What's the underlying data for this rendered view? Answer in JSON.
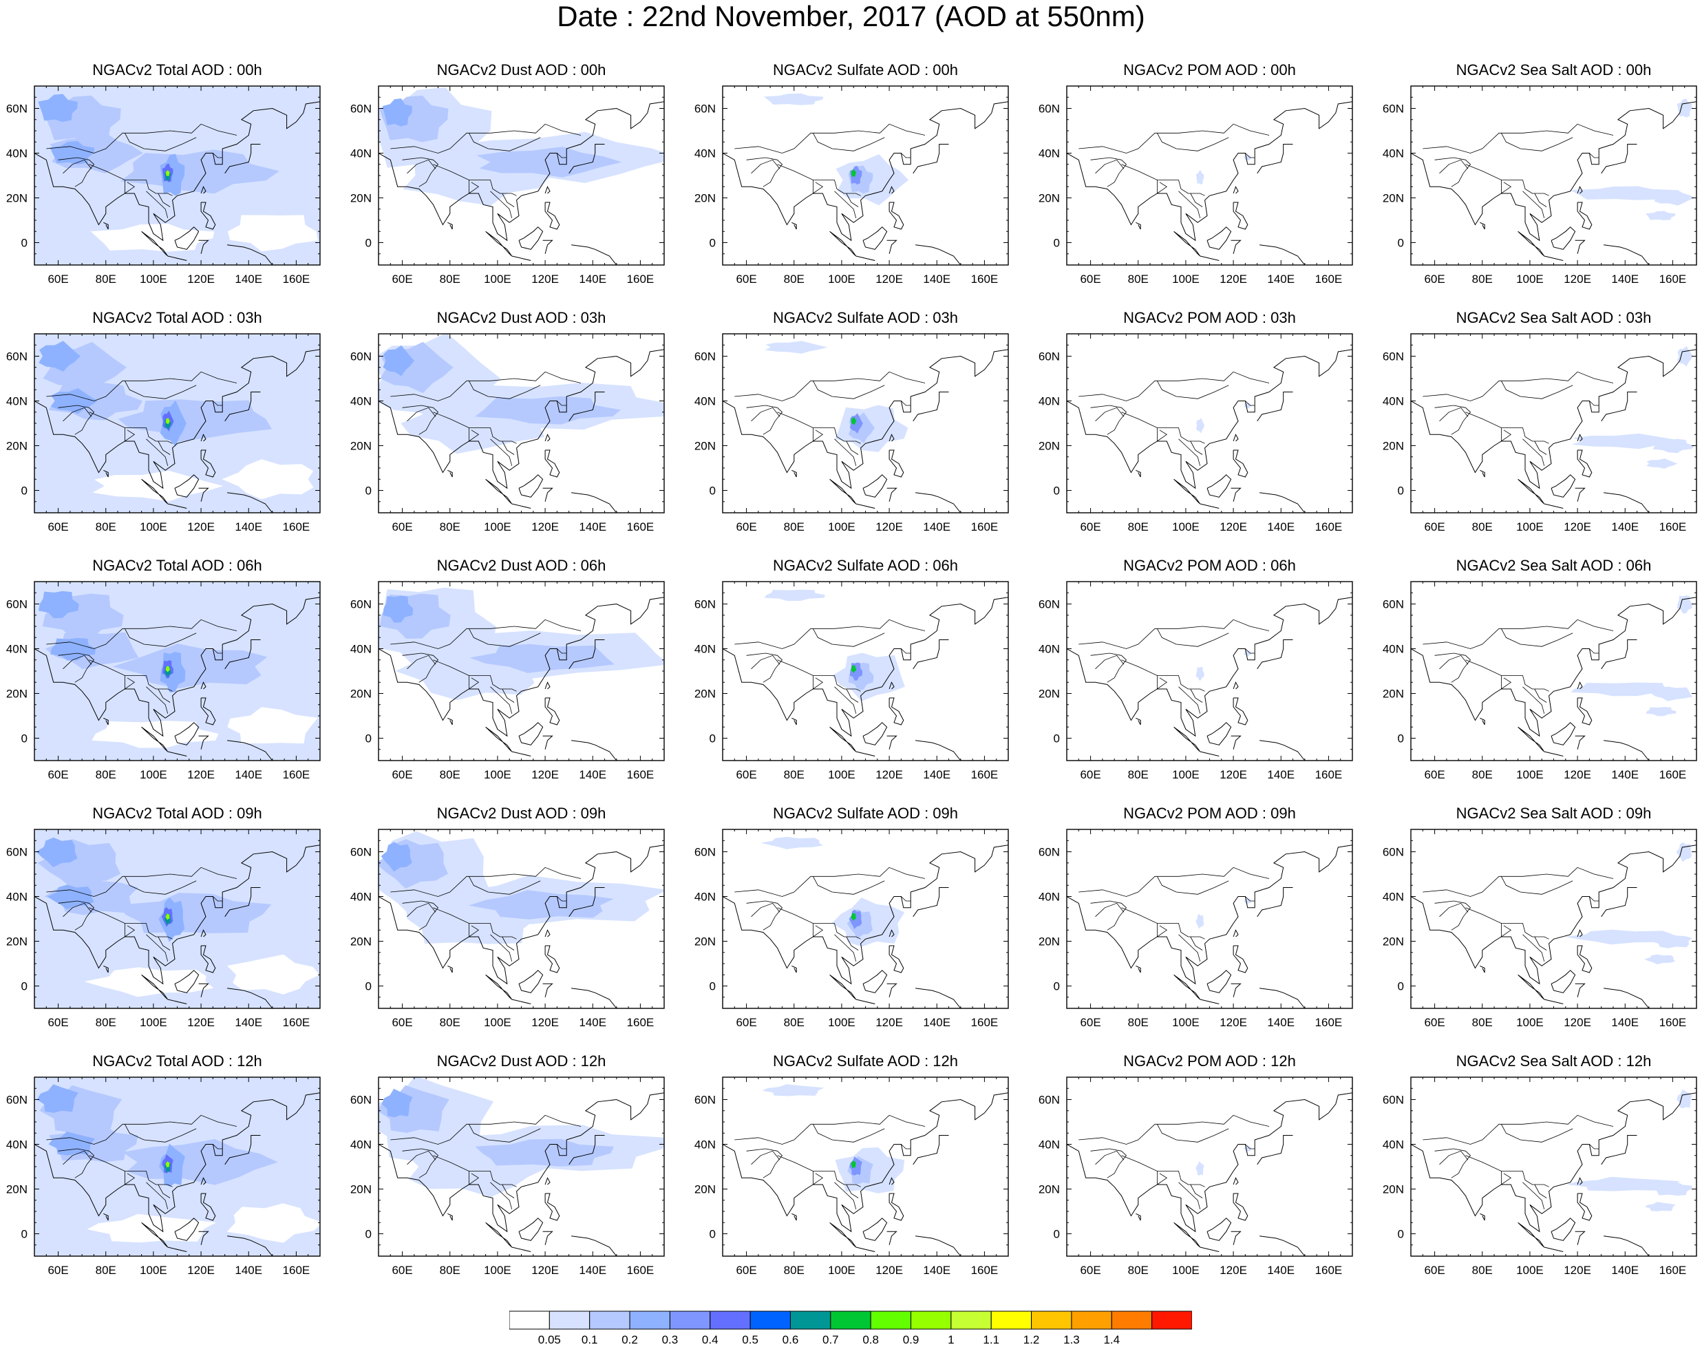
{
  "title": "Date : 22nd November, 2017 (AOD at 550nm)",
  "panel_titles": [
    [
      "NGACv2 Total AOD : 00h",
      "NGACv2 Dust AOD : 00h",
      "NGACv2 Sulfate AOD : 00h",
      "NGACv2 POM AOD : 00h",
      "NGACv2 Sea Salt AOD : 00h"
    ],
    [
      "NGACv2 Total AOD : 03h",
      "NGACv2 Dust AOD : 03h",
      "NGACv2 Sulfate AOD : 03h",
      "NGACv2 POM AOD : 03h",
      "NGACv2 Sea Salt AOD : 03h"
    ],
    [
      "NGACv2 Total AOD : 06h",
      "NGACv2 Dust AOD : 06h",
      "NGACv2 Sulfate AOD : 06h",
      "NGACv2 POM AOD : 06h",
      "NGACv2 Sea Salt AOD : 06h"
    ],
    [
      "NGACv2 Total AOD : 09h",
      "NGACv2 Dust AOD : 09h",
      "NGACv2 Sulfate AOD : 09h",
      "NGACv2 POM AOD : 09h",
      "NGACv2 Sea Salt  AOD : 09h"
    ],
    [
      "NGACv2 Total AOD  : 12h",
      "NGACv2 Dust AOD : 12h",
      "NGACv2 Sulfate AOD : 12h",
      "NGACv2 POM  AOD : 12h",
      "NGACv2 Sea Salt  AOD : 12h"
    ]
  ],
  "x_ticks": [
    "60E",
    "80E",
    "100E",
    "120E",
    "140E",
    "160E"
  ],
  "y_ticks": [
    "60N",
    "40N",
    "20N",
    "0"
  ],
  "colorbar": {
    "colors": [
      "#ffffff",
      "#d6e2ff",
      "#b5c9ff",
      "#8eb2ff",
      "#7f96ff",
      "#6370ff",
      "#0063ff",
      "#009696",
      "#00c633",
      "#63ff00",
      "#96ff00",
      "#c6ff33",
      "#ffff00",
      "#ffc600",
      "#ffa000",
      "#ff7c00",
      "#ff1900"
    ],
    "labels": [
      "0.05",
      "0.1",
      "0.2",
      "0.3",
      "0.4",
      "0.5",
      "0.6",
      "0.7",
      "0.8",
      "0.9",
      "1",
      "1.1",
      "1.2",
      "1.3",
      "1.4"
    ]
  }
}
